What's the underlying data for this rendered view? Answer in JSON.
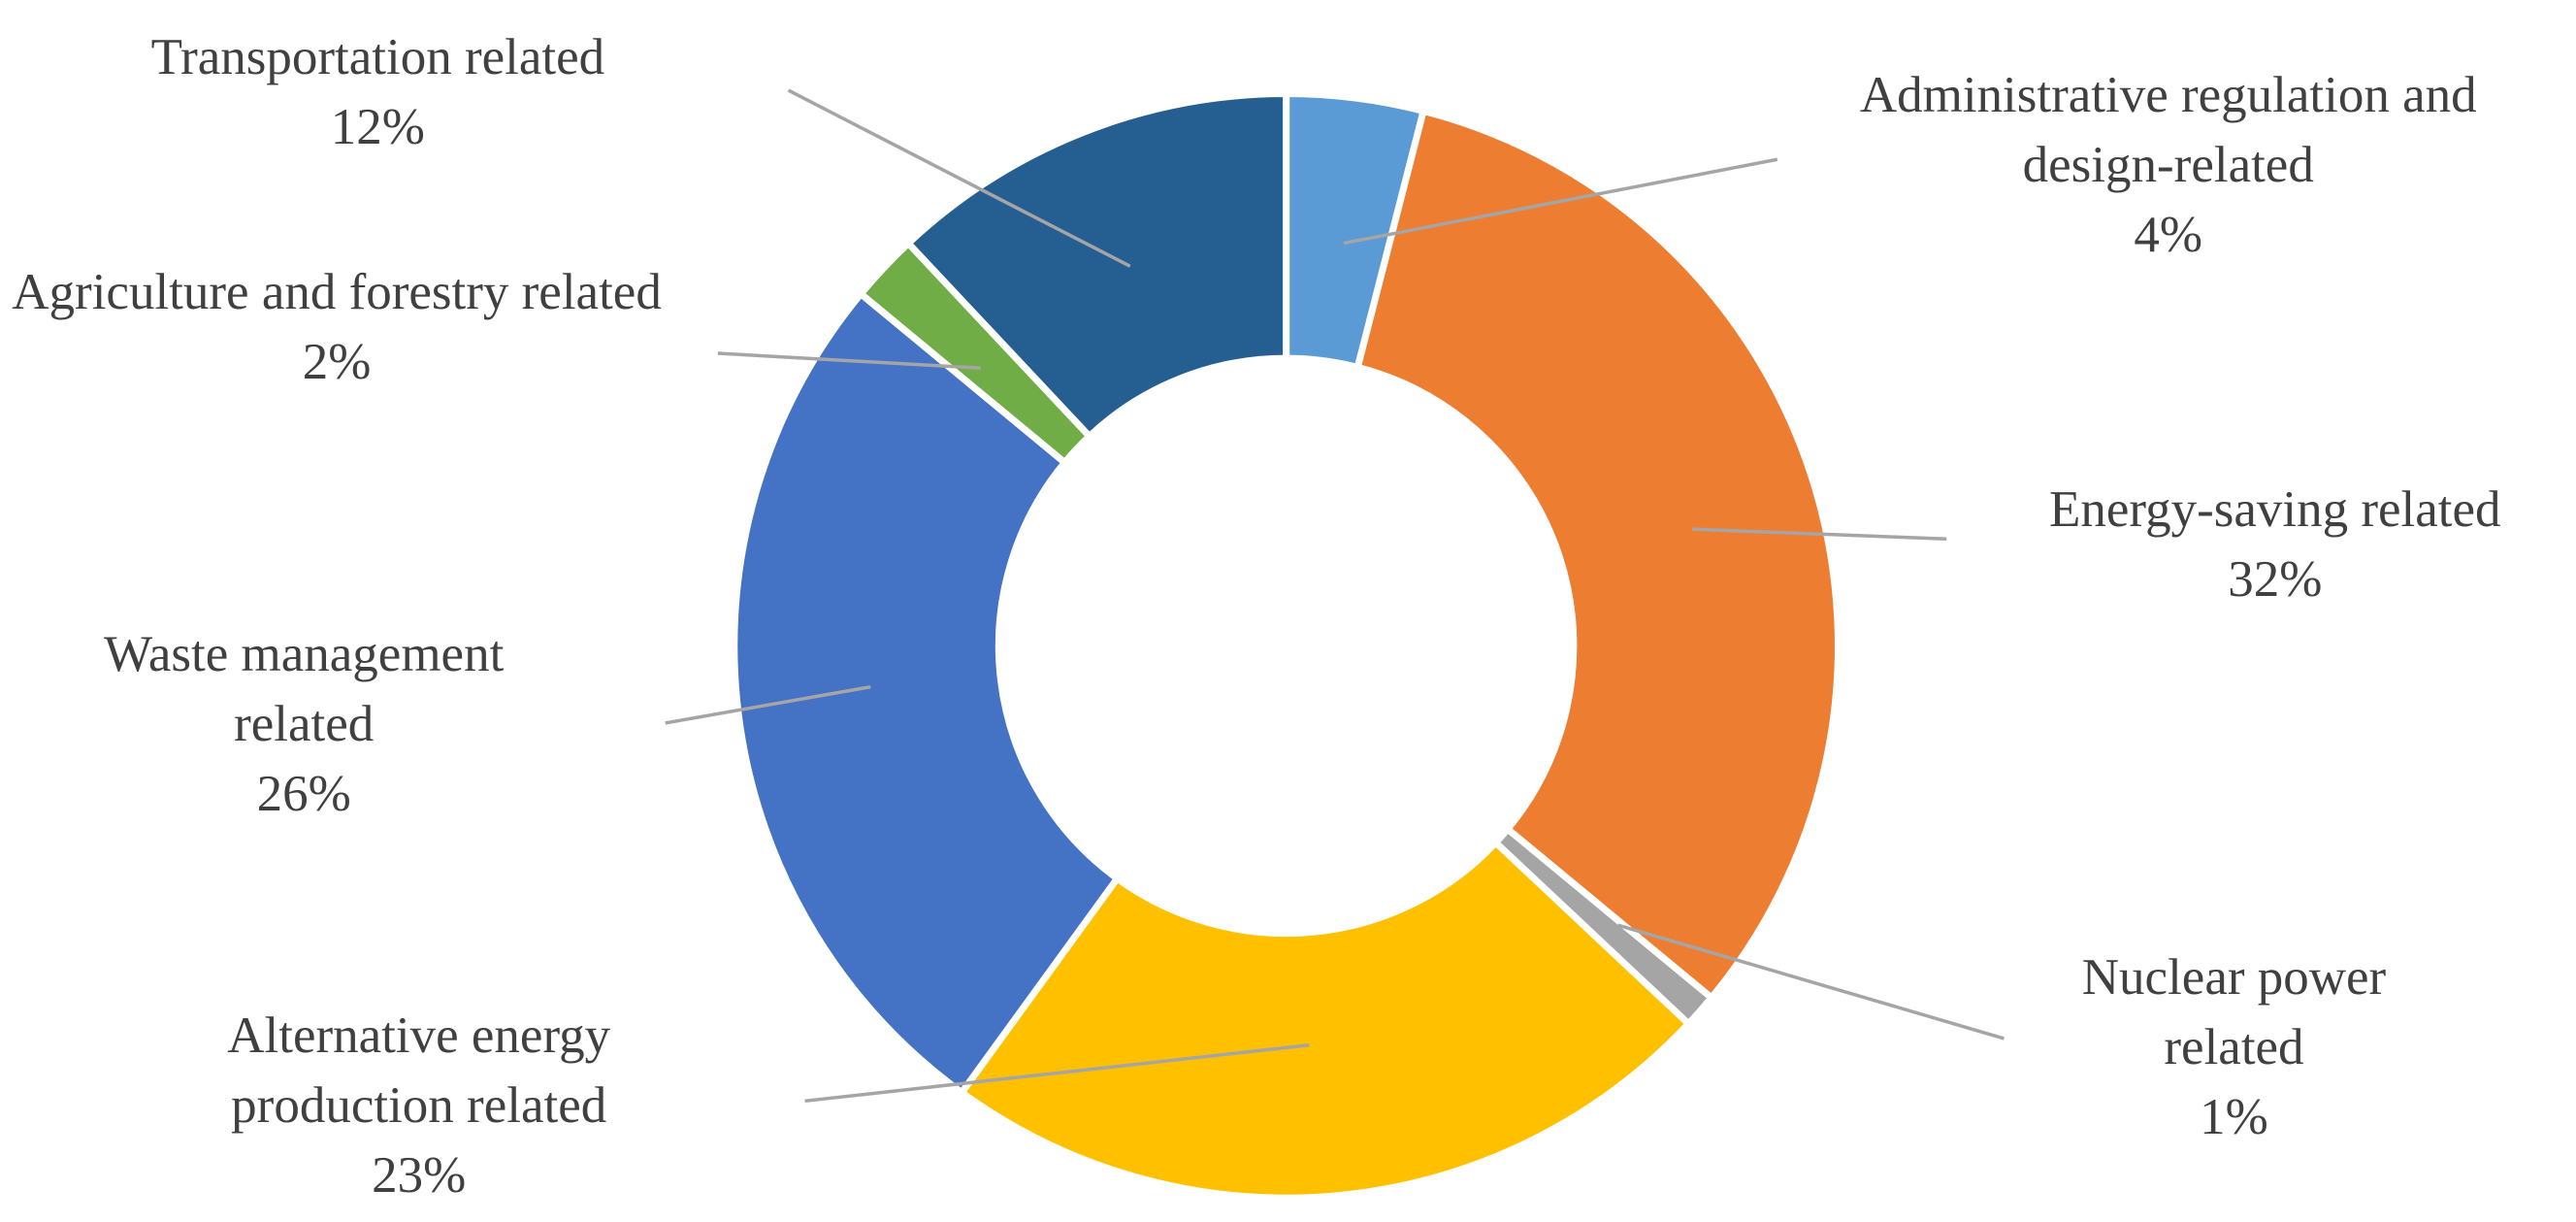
{
  "chart_data": {
    "type": "donut",
    "categories": [
      "Administrative regulation and design-related",
      "Energy-saving related",
      "Nuclear power related",
      "Alternative energy production related",
      "Waste management related",
      "Agriculture and forestry related",
      "Transportation related"
    ],
    "values": [
      4,
      32,
      1,
      23,
      26,
      2,
      12
    ],
    "value_labels": [
      "4%",
      "32%",
      "1%",
      "23%",
      "26%",
      "2%",
      "12%"
    ],
    "colors": [
      "#5b9bd5",
      "#ed7d31",
      "#a5a5a5",
      "#ffc000",
      "#4472c4",
      "#70ad47",
      "#255e91"
    ]
  }
}
